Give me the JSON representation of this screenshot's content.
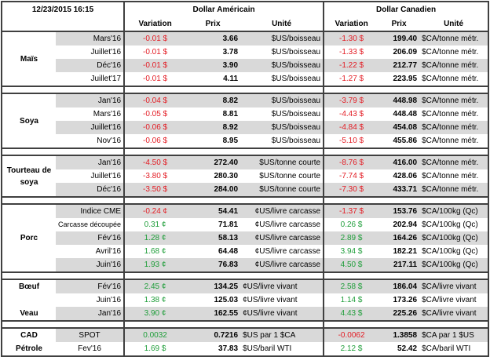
{
  "header": {
    "datetime": "12/23/2015 16:15",
    "usd_title": "Dollar Américain",
    "cad_title": "Dollar Canadien",
    "col_variation": "Variation",
    "col_prix": "Prix",
    "col_unite": "Unité"
  },
  "groups": {
    "mais": "Maïs",
    "soya": "Soya",
    "tourteau": "Tourteau de soya",
    "porc": "Porc",
    "boeuf": "Bœuf",
    "veau": "Veau",
    "cad": "CAD",
    "petrole": "Pétrole"
  },
  "rows": [
    {
      "contract": "Mars'16",
      "us_var": "-0.01 $",
      "us_prix": "3.66",
      "us_unit": "$US/boisseau",
      "ca_var": "-1.30 $",
      "ca_prix": "199.40",
      "ca_unit": "$CA/tonne métr."
    },
    {
      "contract": "Juillet'16",
      "us_var": "-0.01 $",
      "us_prix": "3.78",
      "us_unit": "$US/boisseau",
      "ca_var": "-1.33 $",
      "ca_prix": "206.09",
      "ca_unit": "$CA/tonne métr."
    },
    {
      "contract": "Déc'16",
      "us_var": "-0.01 $",
      "us_prix": "3.90",
      "us_unit": "$US/boisseau",
      "ca_var": "-1.22 $",
      "ca_prix": "212.77",
      "ca_unit": "$CA/tonne métr."
    },
    {
      "contract": "Juillet'17",
      "us_var": "-0.01 $",
      "us_prix": "4.11",
      "us_unit": "$US/boisseau",
      "ca_var": "-1.27 $",
      "ca_prix": "223.95",
      "ca_unit": "$CA/tonne métr."
    },
    {
      "contract": "Jan'16",
      "us_var": "-0.04 $",
      "us_prix": "8.82",
      "us_unit": "$US/boisseau",
      "ca_var": "-3.79 $",
      "ca_prix": "448.98",
      "ca_unit": "$CA/tonne métr."
    },
    {
      "contract": "Mars'16",
      "us_var": "-0.05 $",
      "us_prix": "8.81",
      "us_unit": "$US/boisseau",
      "ca_var": "-4.43 $",
      "ca_prix": "448.48",
      "ca_unit": "$CA/tonne métr."
    },
    {
      "contract": "Juillet'16",
      "us_var": "-0.06 $",
      "us_prix": "8.92",
      "us_unit": "$US/boisseau",
      "ca_var": "-4.84 $",
      "ca_prix": "454.08",
      "ca_unit": "$CA/tonne métr."
    },
    {
      "contract": "Nov'16",
      "us_var": "-0.06 $",
      "us_prix": "8.95",
      "us_unit": "$US/boisseau",
      "ca_var": "-5.10 $",
      "ca_prix": "455.86",
      "ca_unit": "$CA/tonne métr."
    },
    {
      "contract": "Jan'16",
      "us_var": "-4.50 $",
      "us_prix": "272.40",
      "us_unit": "$US/tonne courte",
      "ca_var": "-8.76 $",
      "ca_prix": "416.00",
      "ca_unit": "$CA/tonne métr."
    },
    {
      "contract": "Juillet'16",
      "us_var": "-3.80 $",
      "us_prix": "280.30",
      "us_unit": "$US/tonne courte",
      "ca_var": "-7.74 $",
      "ca_prix": "428.06",
      "ca_unit": "$CA/tonne métr."
    },
    {
      "contract": "Déc'16",
      "us_var": "-3.50 $",
      "us_prix": "284.00",
      "us_unit": "$US/tonne courte",
      "ca_var": "-7.30 $",
      "ca_prix": "433.71",
      "ca_unit": "$CA/tonne métr."
    },
    {
      "contract": "Indice CME",
      "us_var": "-0.24 ¢",
      "us_prix": "54.41",
      "us_unit": "¢US/livre carcasse",
      "ca_var": "-1.37 $",
      "ca_prix": "153.76",
      "ca_unit": "$CA/100kg (Qc)"
    },
    {
      "contract": "Carcasse découpée",
      "us_var": "0.31 ¢",
      "us_prix": "71.81",
      "us_unit": "¢US/livre carcasse",
      "ca_var": "0.26 $",
      "ca_prix": "202.94",
      "ca_unit": "$CA/100kg (Qc)"
    },
    {
      "contract": "Fév'16",
      "us_var": "1.28 ¢",
      "us_prix": "58.13",
      "us_unit": "¢US/livre carcasse",
      "ca_var": "2.89 $",
      "ca_prix": "164.26",
      "ca_unit": "$CA/100kg (Qc)"
    },
    {
      "contract": "Avril'16",
      "us_var": "1.68 ¢",
      "us_prix": "64.48",
      "us_unit": "¢US/livre carcasse",
      "ca_var": "3.94 $",
      "ca_prix": "182.21",
      "ca_unit": "$CA/100kg (Qc)"
    },
    {
      "contract": "Juin'16",
      "us_var": "1.93 ¢",
      "us_prix": "76.83",
      "us_unit": "¢US/livre carcasse",
      "ca_var": "4.50 $",
      "ca_prix": "217.11",
      "ca_unit": "$CA/100kg (Qc)"
    },
    {
      "contract": "Fév'16",
      "us_var": "2.45 ¢",
      "us_prix": "134.25",
      "us_unit": "¢US/livre vivant",
      "ca_var": "2.58 $",
      "ca_prix": "186.04",
      "ca_unit": "$CA/livre vivant"
    },
    {
      "contract": "Juin'16",
      "us_var": "1.38 ¢",
      "us_prix": "125.03",
      "us_unit": "¢US/livre vivant",
      "ca_var": "1.14 $",
      "ca_prix": "173.26",
      "ca_unit": "$CA/livre vivant"
    },
    {
      "contract": "Jan'16",
      "us_var": "3.90 ¢",
      "us_prix": "162.55",
      "us_unit": "¢US/livre vivant",
      "ca_var": "4.43 $",
      "ca_prix": "225.26",
      "ca_unit": "$CA/livre vivant"
    },
    {
      "contract": "SPOT",
      "us_var": "0.0032",
      "us_prix": "0.7216",
      "us_unit": "$US par 1 $CA",
      "ca_var": "-0.0062",
      "ca_prix": "1.3858",
      "ca_unit": "$CA par 1 $US"
    },
    {
      "contract": "Fev'16",
      "us_var": "1.69 $",
      "us_prix": "37.83",
      "us_unit": "$US/baril WTI",
      "ca_var": "2.12 $",
      "ca_prix": "52.42",
      "ca_unit": "$CA/baril WTI"
    }
  ],
  "colors": {
    "negative": "#e31b23",
    "positive": "#1f9e3a",
    "shade": "#d9d9d9",
    "border": "#404040"
  }
}
